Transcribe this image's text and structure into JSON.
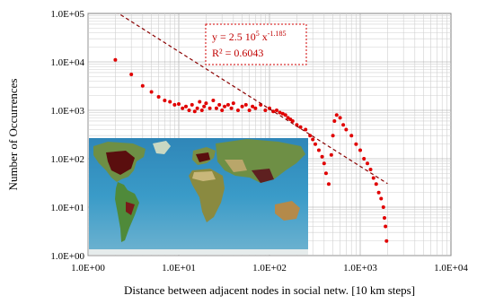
{
  "chart_data": {
    "type": "scatter",
    "title": "",
    "xlabel": "Distance between adjacent nodes in social netw. [10 km steps]",
    "ylabel": "Number of Occurrences",
    "x_scale": "log",
    "y_scale": "log",
    "xlim": [
      1,
      10000
    ],
    "ylim": [
      1,
      100000
    ],
    "x_ticks": [
      "1.0E+00",
      "1.0E+01",
      "1.0E+02",
      "1.0E+03",
      "1.0E+04"
    ],
    "y_ticks": [
      "1.0E+00",
      "1.0E+01",
      "1.0E+02",
      "1.0E+03",
      "1.0E+04",
      "1.0E+05"
    ],
    "grid": "major and minor, both axes",
    "legend": "none",
    "point_color": "#e00000",
    "points": [
      [
        2,
        11000
      ],
      [
        3,
        5500
      ],
      [
        4,
        3200
      ],
      [
        5,
        2400
      ],
      [
        6,
        1900
      ],
      [
        7,
        1600
      ],
      [
        8,
        1500
      ],
      [
        9,
        1300
      ],
      [
        10,
        1350
      ],
      [
        11,
        1100
      ],
      [
        12,
        1200
      ],
      [
        13,
        1000
      ],
      [
        14,
        1300
      ],
      [
        15,
        950
      ],
      [
        16,
        1100
      ],
      [
        17,
        1500
      ],
      [
        18,
        1000
      ],
      [
        19,
        1200
      ],
      [
        20,
        1400
      ],
      [
        22,
        1100
      ],
      [
        24,
        1600
      ],
      [
        26,
        1100
      ],
      [
        28,
        1300
      ],
      [
        30,
        1000
      ],
      [
        32,
        1200
      ],
      [
        35,
        1300
      ],
      [
        38,
        1100
      ],
      [
        40,
        1400
      ],
      [
        45,
        1000
      ],
      [
        50,
        1200
      ],
      [
        55,
        1300
      ],
      [
        60,
        1000
      ],
      [
        65,
        1200
      ],
      [
        70,
        1100
      ],
      [
        80,
        1300
      ],
      [
        90,
        1000
      ],
      [
        100,
        1100
      ],
      [
        110,
        950
      ],
      [
        120,
        1000
      ],
      [
        130,
        900
      ],
      [
        140,
        850
      ],
      [
        150,
        800
      ],
      [
        160,
        700
      ],
      [
        170,
        650
      ],
      [
        180,
        600
      ],
      [
        200,
        500
      ],
      [
        220,
        450
      ],
      [
        250,
        400
      ],
      [
        280,
        300
      ],
      [
        300,
        250
      ],
      [
        320,
        200
      ],
      [
        350,
        150
      ],
      [
        380,
        110
      ],
      [
        400,
        80
      ],
      [
        420,
        50
      ],
      [
        450,
        30
      ],
      [
        480,
        120
      ],
      [
        500,
        300
      ],
      [
        520,
        600
      ],
      [
        550,
        800
      ],
      [
        600,
        700
      ],
      [
        650,
        500
      ],
      [
        700,
        400
      ],
      [
        800,
        300
      ],
      [
        900,
        200
      ],
      [
        1000,
        150
      ],
      [
        1100,
        100
      ],
      [
        1200,
        80
      ],
      [
        1300,
        60
      ],
      [
        1400,
        40
      ],
      [
        1500,
        30
      ],
      [
        1600,
        20
      ],
      [
        1700,
        15
      ],
      [
        1800,
        10
      ],
      [
        1850,
        6
      ],
      [
        1900,
        4
      ],
      [
        1950,
        2
      ]
    ],
    "trendline": {
      "type": "power",
      "coefficient": 250000,
      "exponent": -1.185,
      "color": "#8b0000",
      "style": "dashed",
      "x_range": [
        2,
        2000
      ]
    },
    "equation_text": "y = 2.5 10",
    "equation_exp1": "5",
    "equation_mid": " x",
    "equation_exp2": "-1.185",
    "r_squared_text": "R² = 0.6043",
    "inset": "world map image showing node locations"
  }
}
